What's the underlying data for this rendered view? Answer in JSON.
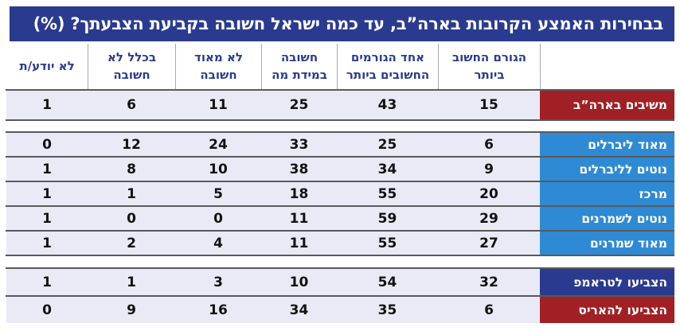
{
  "title": "בבחירות האמצע הקרובות בארה”ב, עד כמה ישראל חשובה בקביעת הצבעתך? (%)",
  "header": {
    "columns": [
      {
        "line1": "הגורם החשוב",
        "line2": "ביותר"
      },
      {
        "line1": "אחד הגורמים",
        "line2": "החשובים ביותר"
      },
      {
        "line1": "חשובה",
        "line2": "במידת מה"
      },
      {
        "line1": "לא מאוד",
        "line2": "חשובה"
      },
      {
        "line1": "בכלל לא",
        "line2": "חשובה"
      },
      {
        "line1": "לא יודע/ת",
        "line2": ""
      }
    ]
  },
  "groups": [
    {
      "rows": [
        {
          "label": "משיבים בארה”ב",
          "color": "red",
          "values": [
            15,
            43,
            25,
            11,
            6,
            1
          ]
        }
      ]
    },
    {
      "rows": [
        {
          "label": "מאוד ליברלים",
          "color": "blue",
          "values": [
            6,
            25,
            33,
            24,
            12,
            0
          ]
        },
        {
          "label": "נוטים לליברלים",
          "color": "blue",
          "values": [
            9,
            34,
            38,
            10,
            8,
            1
          ]
        },
        {
          "label": "מרכז",
          "color": "blue",
          "values": [
            20,
            55,
            18,
            5,
            1,
            1
          ]
        },
        {
          "label": "נוטים לשמרנים",
          "color": "blue",
          "values": [
            29,
            59,
            11,
            0,
            0,
            1
          ]
        },
        {
          "label": "מאוד שמרנים",
          "color": "blue",
          "values": [
            27,
            55,
            11,
            4,
            2,
            1
          ]
        }
      ]
    },
    {
      "rows": [
        {
          "label": "הצביעו לטראמפ",
          "color": "navy",
          "values": [
            32,
            54,
            10,
            3,
            1,
            1
          ]
        },
        {
          "label": "הצביעו להאריס",
          "color": "red",
          "values": [
            6,
            35,
            34,
            16,
            9,
            0
          ]
        }
      ]
    }
  ],
  "colors": {
    "title_background": "#2a3b8f",
    "row_background": "#e9eaf5",
    "label_red": "#a02025",
    "label_blue": "#2f8ad5",
    "label_navy": "#2a3b8f",
    "header_text": "#2a3b8f",
    "divider_dark": "#58595b",
    "divider_light": "#a9a9b0"
  },
  "chart_data": {
    "type": "table",
    "title": "בבחירות האמצע הקרובות בארה”ב, עד כמה ישראל חשובה בקביעת הצבעתך? (%)",
    "unit": "%",
    "columns": [
      "הגורם החשוב ביותר",
      "אחד הגורמים החשובים ביותר",
      "חשובה במידת מה",
      "לא מאוד חשובה",
      "בכלל לא חשובה",
      "לא יודע/ת"
    ],
    "rows": [
      {
        "label": "משיבים בארה”ב",
        "values": [
          15,
          43,
          25,
          11,
          6,
          1
        ]
      },
      {
        "label": "מאוד ליברלים",
        "values": [
          6,
          25,
          33,
          24,
          12,
          0
        ]
      },
      {
        "label": "נוטים לליברלים",
        "values": [
          9,
          34,
          38,
          10,
          8,
          1
        ]
      },
      {
        "label": "מרכז",
        "values": [
          20,
          55,
          18,
          5,
          1,
          1
        ]
      },
      {
        "label": "נוטים לשמרנים",
        "values": [
          29,
          59,
          11,
          0,
          0,
          1
        ]
      },
      {
        "label": "מאוד שמרנים",
        "values": [
          27,
          55,
          11,
          4,
          2,
          1
        ]
      },
      {
        "label": "הצביעו לטראמפ",
        "values": [
          32,
          54,
          10,
          3,
          1,
          1
        ]
      },
      {
        "label": "הצביעו להאריס",
        "values": [
          6,
          35,
          34,
          16,
          9,
          0
        ]
      }
    ]
  }
}
